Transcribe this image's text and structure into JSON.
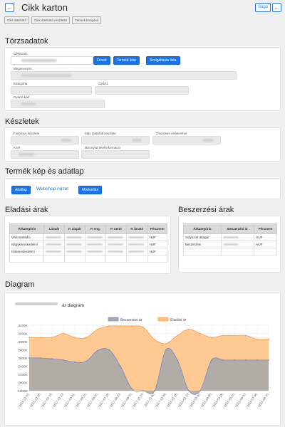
{
  "header": {
    "title": "Cikk karton",
    "help_label": "Súgó",
    "back_icon": "arrow-left-icon"
  },
  "subtabs": [
    "Cikk áttekintő",
    "Cikk áttekintő részletes",
    "Termék kongéső"
  ],
  "torzsadatok": {
    "title": "Törzsadatok",
    "cikkszam_label": "Cikkszám",
    "buttons": {
      "refresh": "Frissít",
      "product_list": "Termék lista",
      "service_list": "Szolgáltatás lista"
    },
    "megnevezes_label": "Megnevezés",
    "kategoria_label": "Kategória",
    "gyarto_label": "Gyártó",
    "gyarto_kod_label": "Gyártó kód"
  },
  "keszletek": {
    "title": "Készletek",
    "forkonyv_label": "Forkönyv készlete",
    "mas_raktarak_label": "Más raktárak készlete",
    "osszesen_label": "Összesen értékesítve",
    "ksh_label": "KSH",
    "bizonylat_label": "Bizonylat tétel információ"
  },
  "termek_kep": {
    "title": "Termék kép és adatlap",
    "adatlap_label": "Adatlap",
    "webshop_label": "Webshop nézet",
    "modositas_label": "Módosítás"
  },
  "eladasi": {
    "title": "Eladási árak",
    "headers": [
      "Árkategória",
      "Listaár",
      "P. alapár",
      "P. eng.",
      "P. nettó",
      "P. bruttó",
      "Pénznem"
    ],
    "rows": [
      {
        "name": "Viszonteladói",
        "currency": "HUF"
      },
      {
        "name": "Nagykereskedelmi",
        "currency": "HUF"
      },
      {
        "name": "Kiskereskedelmi",
        "currency": "HUF"
      }
    ]
  },
  "beszerzesi": {
    "title": "Beszerzési árak",
    "headers": [
      "Árkategória",
      "Beszerzési ár",
      "Pénznem"
    ],
    "rows": [
      {
        "name": "Súlyozott átlagár",
        "currency": "HUF"
      },
      {
        "name": "Beszerzési",
        "currency": "HUF"
      }
    ]
  },
  "diagram": {
    "title": "Diagram",
    "chart_title_suffix": "ár diagram"
  },
  "chart_data": {
    "type": "area",
    "title": "ár diagram",
    "series": [
      {
        "name": "Beszerzési ár",
        "color": "#a9a9a9",
        "values": [
          26000,
          26000,
          25800,
          25500,
          25000,
          25200,
          27800,
          28000,
          24000,
          18500,
          18000,
          18000,
          28000,
          25500,
          18000,
          18000,
          25500,
          25500,
          25500,
          25500,
          25500,
          25500
        ]
      },
      {
        "name": "Eladási ár",
        "color": "#ffbf80",
        "values": [
          31000,
          31000,
          31000,
          32000,
          31000,
          31000,
          33000,
          33800,
          33800,
          33800,
          33500,
          30500,
          29500,
          31500,
          33000,
          32000,
          31000,
          31500,
          31500,
          31500,
          30600,
          30600
        ]
      }
    ],
    "x": [
      "2016-12-01",
      "2016-12-20",
      "2017-01-19",
      "2017-02-13",
      "2017-03-01",
      "2017-05-15",
      "2017-06-15",
      "2017-07-20",
      "2017-08-23",
      "2017-09-15",
      "2017-10-24",
      "2017-11-03",
      "2017-12-06",
      "2018-01-25",
      "2018-02-13",
      "2018-03-01",
      "2018-04-05",
      "2018-04-25",
      "2018-05-15",
      "2018-06-03",
      "2018-07-08",
      "2018-08-15"
    ],
    "yticks": [
      18000,
      20000,
      22000,
      24000,
      26000,
      28000,
      30000,
      32000,
      34000
    ],
    "ylim": [
      18000,
      34000
    ],
    "grid": true,
    "legend": "top"
  }
}
